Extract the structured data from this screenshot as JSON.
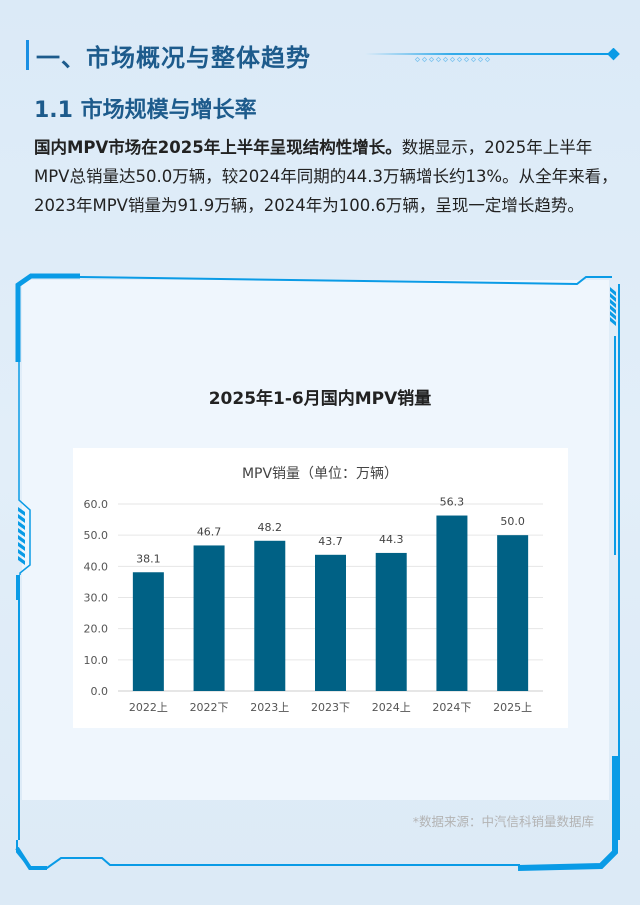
{
  "section": {
    "title": "一、市场概况与整体趋势",
    "subtitle": "1.1 市场规模与增长率"
  },
  "paragraph": {
    "bold_lead": "国内MPV市场在2025年上半年呈现结构性增长。",
    "body": "数据显示，2025年上半年MPV总销量达50.0万辆，较2024年同期的44.3万辆增长约13%。从全年来看，2023年MPV销量为91.9万辆，2024年为100.6万辆，呈现一定增长趋势。"
  },
  "figure": {
    "title": "2025年1-6月国内MPV销量",
    "source": "*数据来源：中汽信科销量数据库"
  },
  "colors": {
    "accent": "#0a9be6",
    "heading": "#1d5b8c",
    "bar": "#006185"
  },
  "chart_data": {
    "type": "bar",
    "title": "MPV销量（单位：万辆）",
    "categories": [
      "2022上",
      "2022下",
      "2023上",
      "2023下",
      "2024上",
      "2024下",
      "2025上"
    ],
    "values": [
      38.1,
      46.7,
      48.2,
      43.7,
      44.3,
      56.3,
      50.0
    ],
    "value_labels": [
      "38.1",
      "46.7",
      "48.2",
      "43.7",
      "44.3",
      "56.3",
      "50.0"
    ],
    "xlabel": "",
    "ylabel": "",
    "ylim": [
      0,
      60
    ],
    "yticks": [
      "0.0",
      "10.0",
      "20.0",
      "30.0",
      "40.0",
      "50.0",
      "60.0"
    ],
    "grid": true,
    "legend": false
  }
}
